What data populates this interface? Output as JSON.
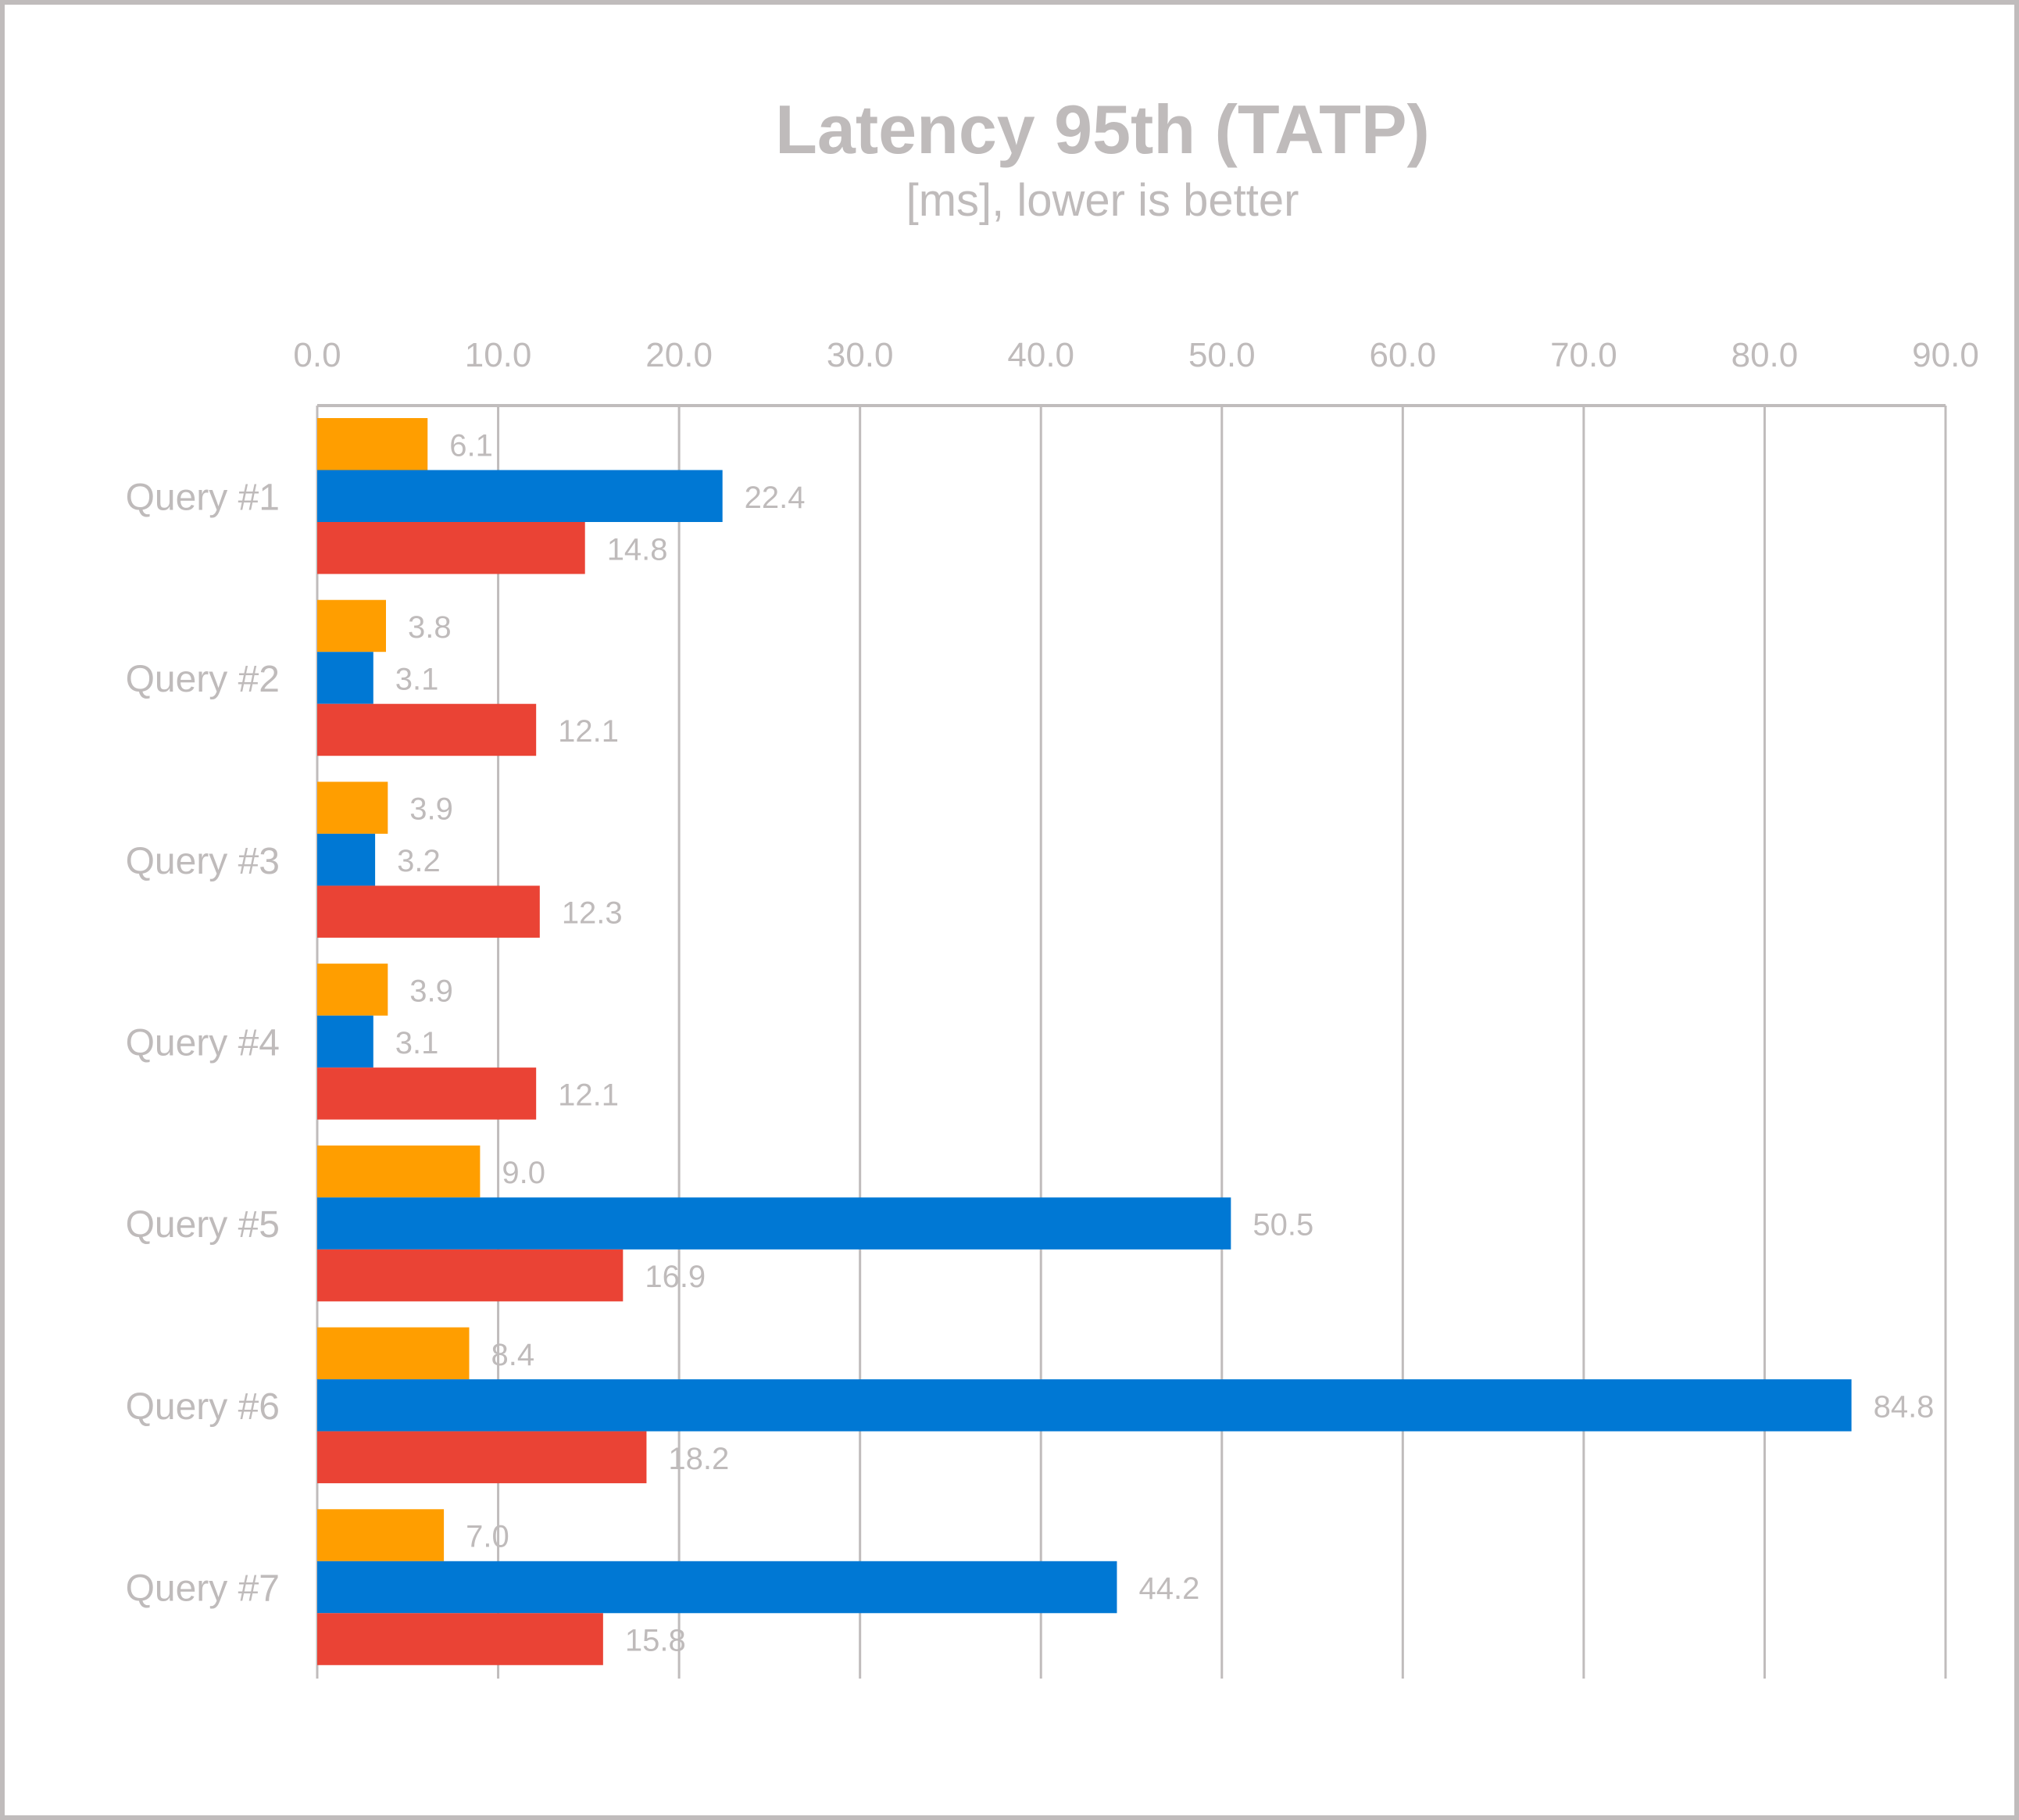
{
  "chart_data": {
    "type": "bar",
    "orientation": "horizontal",
    "title": "Latency 95th (TATP)",
    "subtitle": "[ms], lower is better",
    "categories": [
      "Query #1",
      "Query #2",
      "Query #3",
      "Query #4",
      "Query #5",
      "Query #6",
      "Query #7"
    ],
    "series": [
      {
        "color": "#FF9E00",
        "values": [
          6.1,
          3.8,
          3.9,
          3.9,
          9.0,
          8.4,
          7.0
        ]
      },
      {
        "color": "#0078D4",
        "values": [
          22.4,
          3.1,
          3.2,
          3.1,
          50.5,
          84.8,
          44.2
        ]
      },
      {
        "color": "#EA4335",
        "values": [
          14.8,
          12.1,
          12.3,
          12.1,
          16.9,
          18.2,
          15.8
        ]
      }
    ],
    "xlim": [
      0,
      90
    ],
    "xticks": [
      "0.0",
      "10.0",
      "20.0",
      "30.0",
      "40.0",
      "50.0",
      "60.0",
      "70.0",
      "80.0",
      "90.0"
    ],
    "x_axis_position": "top",
    "grid": true,
    "legend": "none",
    "text_color": "#BFBBBB",
    "grid_color": "#C0BCBC"
  }
}
